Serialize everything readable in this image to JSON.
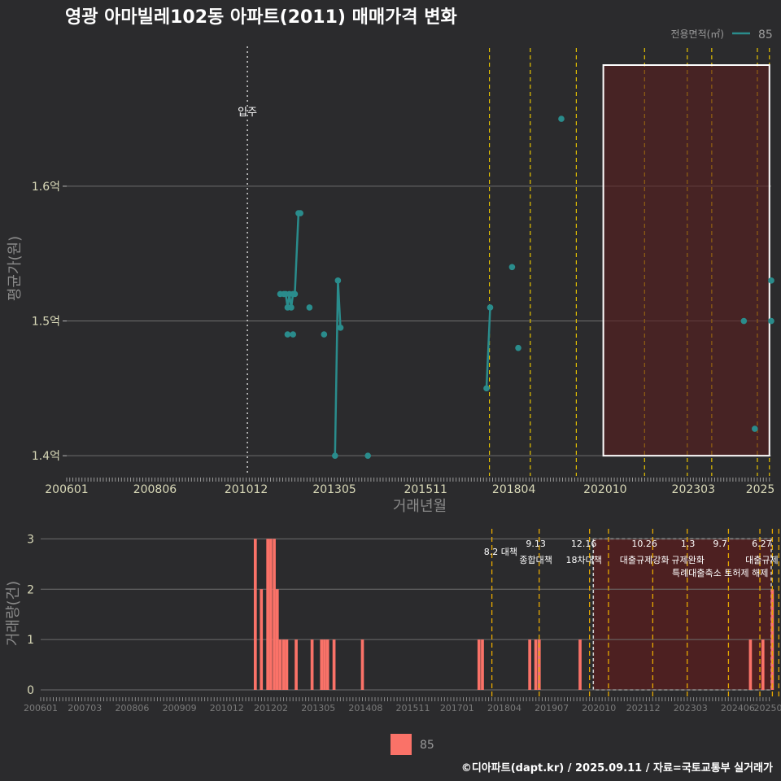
{
  "title": "영광 아마빌레102동 아파트(2011) 매매가격 변화",
  "caption": "©디아파트(dapt.kr) / 2025.09.11 / 자료=국토교통부 실거래가",
  "legend_top": {
    "title": "전용면적(㎡)",
    "label": "85"
  },
  "legend_bottom": {
    "label": "85"
  },
  "colors": {
    "background": "#2b2b2d",
    "line": "#2a8c8c",
    "bars": "#fa7268",
    "policy": "#e6c200",
    "highlight": "#5a1e1e"
  },
  "chart_data": [
    {
      "type": "line",
      "title": "영광 아마빌레102동 아파트(2011) 매매가격 변화",
      "xlabel": "거래년월",
      "ylabel": "평균가(원)",
      "xlim": [
        2006.0,
        2025.3
      ],
      "ylim": [
        1.385,
        1.705
      ],
      "x_ticks": [
        {
          "x": 2006.0,
          "label": "200601"
        },
        {
          "x": 2008.4167,
          "label": "200806"
        },
        {
          "x": 2010.9167,
          "label": "201012"
        },
        {
          "x": 2013.3333,
          "label": "201305"
        },
        {
          "x": 2015.8333,
          "label": "201511"
        },
        {
          "x": 2018.25,
          "label": "201804"
        },
        {
          "x": 2020.75,
          "label": "202010"
        },
        {
          "x": 2023.1667,
          "label": "202303"
        },
        {
          "x": 2025.0,
          "label": "2025"
        }
      ],
      "y_ticks": [
        {
          "y": 1.4,
          "label": "1.4억"
        },
        {
          "y": 1.5,
          "label": "1.5억"
        },
        {
          "y": 1.6,
          "label": "1.6억"
        }
      ],
      "series": [
        {
          "name": "85",
          "line_segments": [
            [
              [
                2011.85,
                1.52
              ],
              [
                2011.95,
                1.52
              ],
              [
                2012.0,
                1.52
              ],
              [
                2012.05,
                1.51
              ],
              [
                2012.1,
                1.52
              ],
              [
                2012.15,
                1.51
              ],
              [
                2012.2,
                1.52
              ],
              [
                2012.25,
                1.52
              ],
              [
                2012.35,
                1.58
              ],
              [
                2012.4,
                1.58
              ]
            ],
            [
              [
                2013.35,
                1.4
              ],
              [
                2013.43,
                1.53
              ],
              [
                2013.5,
                1.495
              ]
            ],
            [
              [
                2017.5,
                1.45
              ],
              [
                2017.6,
                1.51
              ]
            ]
          ],
          "points": [
            [
              2011.85,
              1.52
            ],
            [
              2011.95,
              1.52
            ],
            [
              2012.0,
              1.52
            ],
            [
              2012.05,
              1.51
            ],
            [
              2012.1,
              1.52
            ],
            [
              2012.15,
              1.51
            ],
            [
              2012.2,
              1.52
            ],
            [
              2012.25,
              1.52
            ],
            [
              2012.35,
              1.58
            ],
            [
              2012.4,
              1.58
            ],
            [
              2012.05,
              1.49
            ],
            [
              2012.2,
              1.49
            ],
            [
              2012.65,
              1.51
            ],
            [
              2013.05,
              1.49
            ],
            [
              2013.35,
              1.4
            ],
            [
              2013.43,
              1.53
            ],
            [
              2013.5,
              1.495
            ],
            [
              2014.25,
              1.4
            ],
            [
              2017.5,
              1.45
            ],
            [
              2017.6,
              1.51
            ],
            [
              2018.2,
              1.54
            ],
            [
              2018.37,
              1.48
            ],
            [
              2019.55,
              1.65
            ],
            [
              2024.55,
              1.5
            ],
            [
              2024.85,
              1.42
            ],
            [
              2025.3,
              1.53
            ],
            [
              2025.3,
              1.5
            ]
          ]
        }
      ],
      "move_in": {
        "x": 2010.95,
        "label": "입주"
      },
      "policy_lines": [
        2017.58,
        2018.7,
        2019.96,
        2021.83,
        2023.0,
        2023.67,
        2024.92,
        2025.25
      ],
      "highlight_range": [
        2020.7,
        2025.25
      ]
    },
    {
      "type": "bar",
      "xlabel": "",
      "ylabel": "거래량(건)",
      "xlim": [
        2006.0,
        2025.3
      ],
      "ylim": [
        0,
        3.2
      ],
      "y_ticks": [
        0,
        1,
        2,
        3
      ],
      "x_ticks": [
        {
          "x": 2006.0,
          "label": "200601"
        },
        {
          "x": 2007.1667,
          "label": "200703"
        },
        {
          "x": 2008.4167,
          "label": "200806"
        },
        {
          "x": 2009.6667,
          "label": "200909"
        },
        {
          "x": 2010.9167,
          "label": "201012"
        },
        {
          "x": 2012.0833,
          "label": "201202"
        },
        {
          "x": 2013.3333,
          "label": "201305"
        },
        {
          "x": 2014.5833,
          "label": "201408"
        },
        {
          "x": 2015.8333,
          "label": "201511"
        },
        {
          "x": 2017.0,
          "label": "201701"
        },
        {
          "x": 2018.25,
          "label": "201804"
        },
        {
          "x": 2019.5,
          "label": "201907"
        },
        {
          "x": 2020.75,
          "label": "202010"
        },
        {
          "x": 2021.9167,
          "label": "202112"
        },
        {
          "x": 2023.1667,
          "label": "202303"
        },
        {
          "x": 2024.4167,
          "label": "202406"
        },
        {
          "x": 2025.3,
          "label": "20250"
        }
      ],
      "bars": [
        [
          2011.67,
          3
        ],
        [
          2011.83,
          2
        ],
        [
          2012.0,
          3
        ],
        [
          2012.08,
          3
        ],
        [
          2012.17,
          3
        ],
        [
          2012.25,
          2
        ],
        [
          2012.33,
          1
        ],
        [
          2012.42,
          1
        ],
        [
          2012.5,
          1
        ],
        [
          2012.75,
          1
        ],
        [
          2013.17,
          1
        ],
        [
          2013.42,
          1
        ],
        [
          2013.5,
          1
        ],
        [
          2013.58,
          1
        ],
        [
          2013.75,
          1
        ],
        [
          2014.5,
          1
        ],
        [
          2017.58,
          1
        ],
        [
          2017.67,
          1
        ],
        [
          2018.92,
          1
        ],
        [
          2019.08,
          1
        ],
        [
          2019.17,
          1
        ],
        [
          2020.25,
          1
        ],
        [
          2024.75,
          1
        ],
        [
          2025.08,
          1
        ],
        [
          2025.33,
          2
        ]
      ],
      "policy_lines": [
        2017.92,
        2019.17,
        2020.5,
        2021.0,
        2022.17,
        2023.08,
        2024.17,
        2025.0,
        2025.33,
        2025.5
      ],
      "highlight_range": [
        2020.6,
        2025.3
      ],
      "annotations": [
        {
          "x": 2018.15,
          "line1": "8.2 대책",
          "line2": ""
        },
        {
          "x": 2019.08,
          "line1": "9.13",
          "line2": "종합대책"
        },
        {
          "x": 2020.35,
          "line1": "12.16",
          "line2": "18차대책"
        },
        {
          "x": 2021.95,
          "line1": "10.26",
          "line2": "대출규제강화"
        },
        {
          "x": 2023.1,
          "line1": "1.3",
          "line2": "규제완화"
        },
        {
          "x": 2023.95,
          "line1": "9.7",
          "line2": "특례대출축소 토허제 해제"
        },
        {
          "x": 2025.05,
          "line1": "6.27",
          "line2": "대출규제"
        }
      ]
    }
  ]
}
